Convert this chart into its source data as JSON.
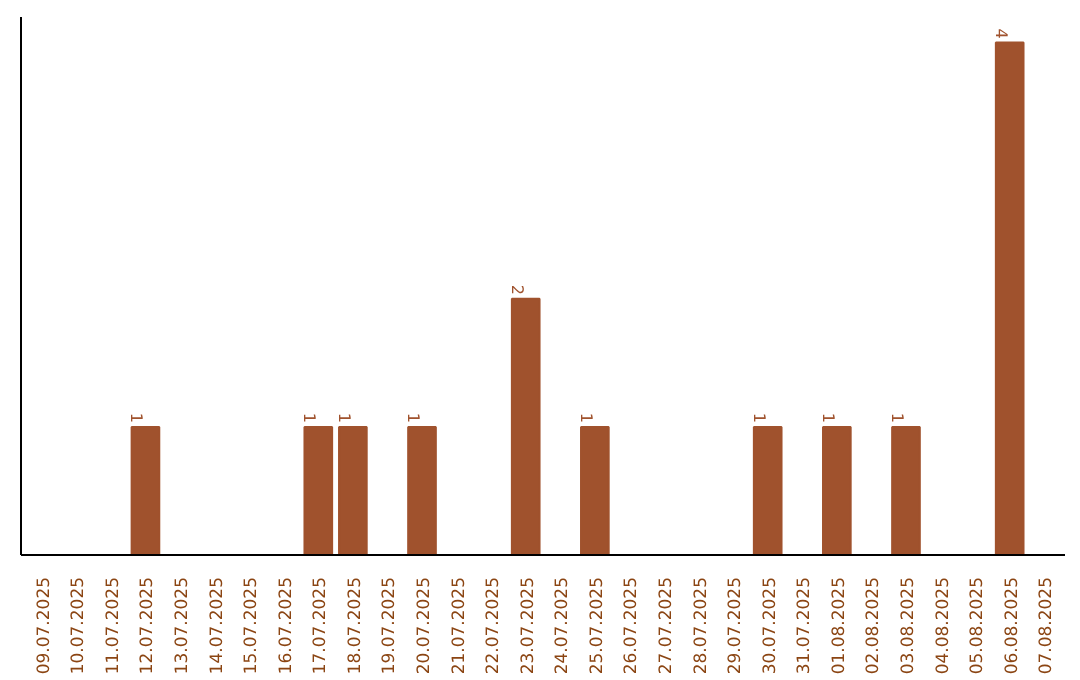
{
  "chart_data": {
    "type": "bar",
    "categories": [
      "09.07.2025",
      "10.07.2025",
      "11.07.2025",
      "12.07.2025",
      "13.07.2025",
      "14.07.2025",
      "15.07.2025",
      "16.07.2025",
      "17.07.2025",
      "18.07.2025",
      "19.07.2025",
      "20.07.2025",
      "21.07.2025",
      "22.07.2025",
      "23.07.2025",
      "24.07.2025",
      "25.07.2025",
      "26.07.2025",
      "27.07.2025",
      "28.07.2025",
      "29.07.2025",
      "30.07.2025",
      "31.07.2025",
      "01.08.2025",
      "02.08.2025",
      "03.08.2025",
      "04.08.2025",
      "05.08.2025",
      "06.08.2025",
      "07.08.2025"
    ],
    "values": [
      0,
      0,
      0,
      1,
      0,
      0,
      0,
      0,
      1,
      1,
      0,
      1,
      0,
      0,
      2,
      0,
      1,
      0,
      0,
      0,
      0,
      1,
      0,
      1,
      0,
      1,
      0,
      0,
      4,
      0
    ],
    "value_labels": [
      null,
      null,
      null,
      "1",
      null,
      null,
      null,
      null,
      "1",
      "1",
      null,
      "1",
      null,
      null,
      "2",
      null,
      "1",
      null,
      null,
      null,
      null,
      "1",
      null,
      "1",
      null,
      "1",
      null,
      null,
      "4",
      null
    ],
    "color": "#a0522d",
    "ylim": [
      0,
      4.2
    ],
    "tick_labels": "x"
  }
}
